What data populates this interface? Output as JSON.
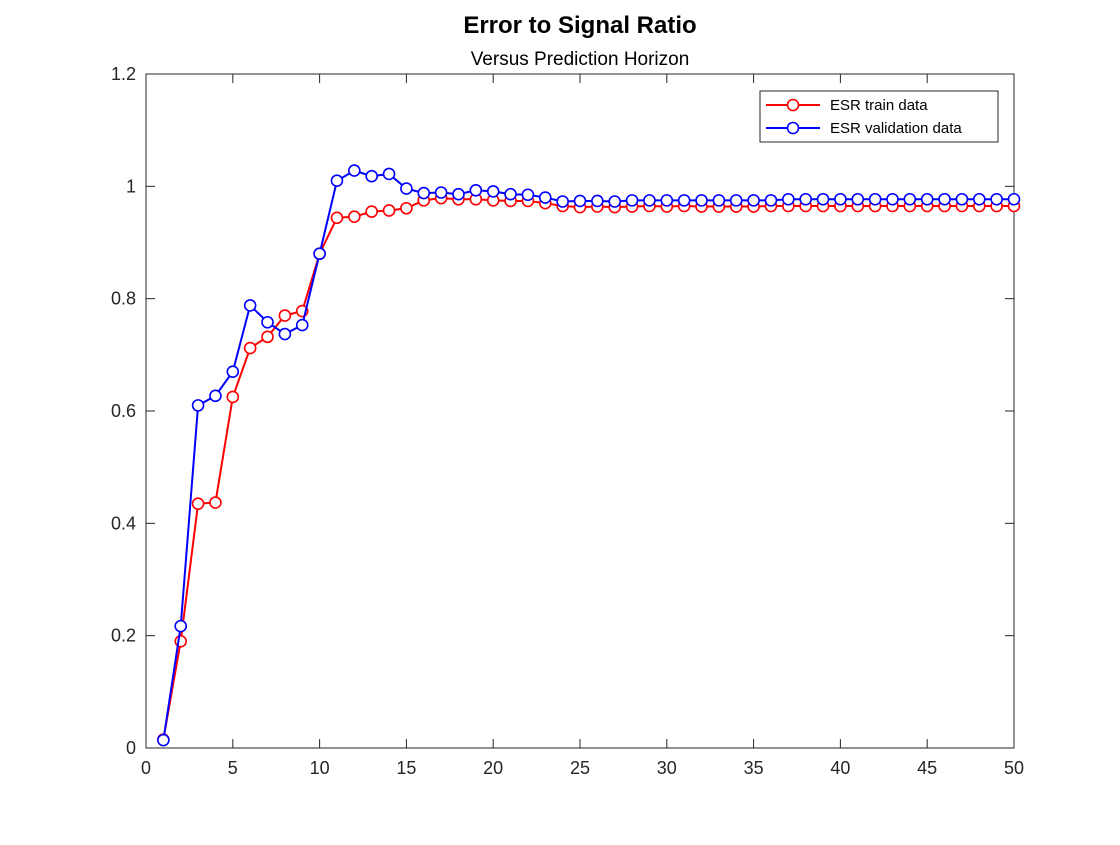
{
  "chart_data": {
    "type": "line",
    "title": "Error to Signal Ratio",
    "subtitle": "Versus Prediction Horizon",
    "xlabel": "",
    "ylabel": "",
    "xlim": [
      0,
      50
    ],
    "ylim": [
      0,
      1.2
    ],
    "xticks": [
      0,
      5,
      10,
      15,
      20,
      25,
      30,
      35,
      40,
      45,
      50
    ],
    "yticks": [
      0,
      0.2,
      0.4,
      0.6,
      0.8,
      1,
      1.2
    ],
    "xtick_labels": [
      "0",
      "5",
      "10",
      "15",
      "20",
      "25",
      "30",
      "35",
      "40",
      "45",
      "50"
    ],
    "ytick_labels": [
      "0",
      "0.2",
      "0.4",
      "0.6",
      "0.8",
      "1",
      "1.2"
    ],
    "grid": false,
    "legend_position": "top-right",
    "marker": "open-circle",
    "x": [
      1,
      2,
      3,
      4,
      5,
      6,
      7,
      8,
      9,
      10,
      11,
      12,
      13,
      14,
      15,
      16,
      17,
      18,
      19,
      20,
      21,
      22,
      23,
      24,
      25,
      26,
      27,
      28,
      29,
      30,
      31,
      32,
      33,
      34,
      35,
      36,
      37,
      38,
      39,
      40,
      41,
      42,
      43,
      44,
      45,
      46,
      47,
      48,
      49,
      50
    ],
    "series": [
      {
        "name": "ESR train data",
        "color": "#ff0000",
        "values": [
          0.015,
          0.19,
          0.435,
          0.437,
          0.625,
          0.712,
          0.732,
          0.77,
          0.778,
          0.88,
          0.944,
          0.946,
          0.955,
          0.957,
          0.961,
          0.975,
          0.979,
          0.977,
          0.977,
          0.975,
          0.974,
          0.974,
          0.97,
          0.965,
          0.963,
          0.964,
          0.963,
          0.964,
          0.965,
          0.964,
          0.965,
          0.964,
          0.964,
          0.964,
          0.964,
          0.965,
          0.965,
          0.965,
          0.965,
          0.965,
          0.965,
          0.965,
          0.965,
          0.965,
          0.965,
          0.965,
          0.965,
          0.965,
          0.965,
          0.965
        ]
      },
      {
        "name": "ESR validation data",
        "color": "#0000ff",
        "values": [
          0.014,
          0.217,
          0.61,
          0.627,
          0.67,
          0.788,
          0.758,
          0.737,
          0.753,
          0.88,
          1.01,
          1.028,
          1.018,
          1.022,
          0.996,
          0.988,
          0.989,
          0.986,
          0.993,
          0.991,
          0.986,
          0.985,
          0.98,
          0.973,
          0.974,
          0.974,
          0.973,
          0.975,
          0.975,
          0.975,
          0.975,
          0.975,
          0.975,
          0.975,
          0.975,
          0.975,
          0.977,
          0.977,
          0.977,
          0.977,
          0.977,
          0.977,
          0.977,
          0.977,
          0.977,
          0.977,
          0.977,
          0.977,
          0.977,
          0.977
        ]
      }
    ]
  }
}
